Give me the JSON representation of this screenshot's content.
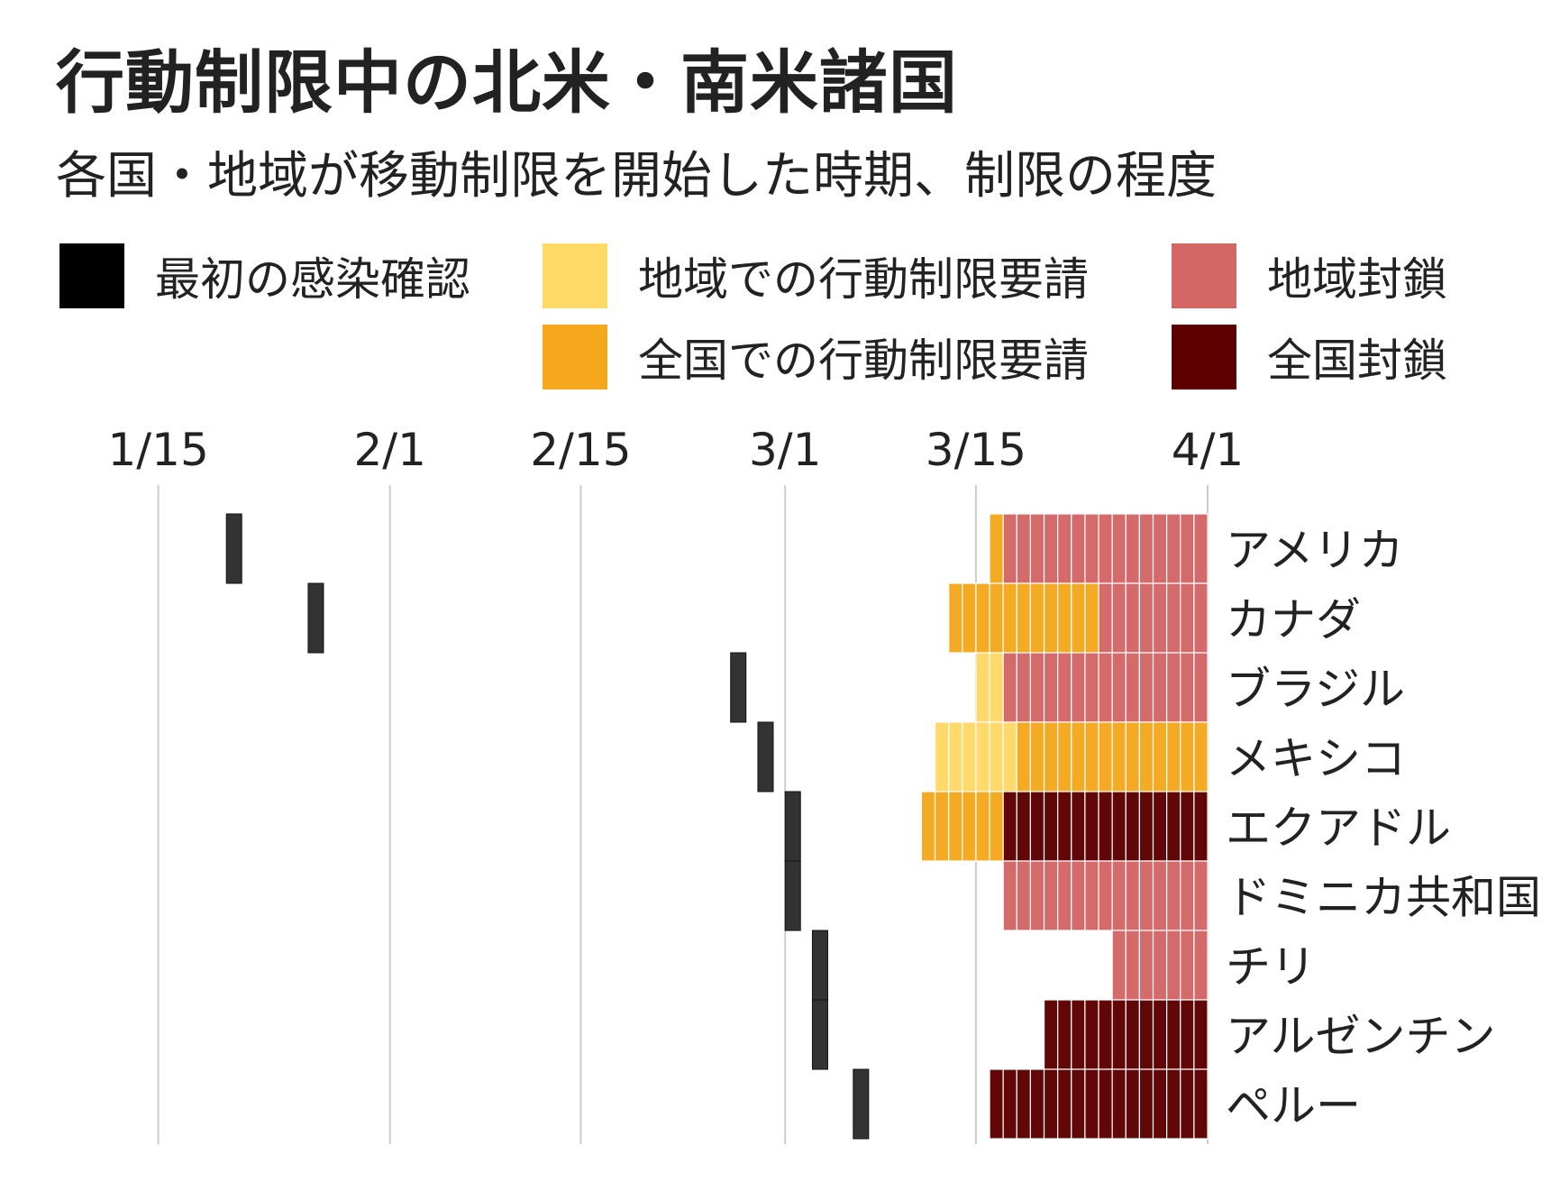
{
  "title": "行動制限中の北米・南米諸国",
  "subtitle": "各国・地域が移動制限を開始した時期、制限の程度",
  "legend": [
    {
      "key": "first_case",
      "label": "最初の感染確認",
      "color": "#000000"
    },
    {
      "key": "regional_request",
      "label": "地域での行動制限要請",
      "color": "#ffd966"
    },
    {
      "key": "regional_lockdown",
      "label": "地域封鎖",
      "color": "#d46666"
    },
    {
      "key": "national_request",
      "label": "全国での行動制限要請",
      "color": "#f5a81c"
    },
    {
      "key": "national_lockdown",
      "label": "全国封鎖",
      "color": "#5c0000"
    }
  ],
  "chart_data": {
    "type": "timeline",
    "x_ticks": [
      "1/15",
      "2/1",
      "2/15",
      "3/1",
      "3/15",
      "4/1"
    ],
    "x_range": [
      "2020-01-10",
      "2020-04-01"
    ],
    "first_case_color": "#333333",
    "countries": [
      {
        "name": "アメリカ",
        "first_case": "2020-01-20",
        "periods": [
          {
            "start": "2020-03-16",
            "status": "national_request"
          },
          {
            "start": "2020-03-17",
            "status": "regional_lockdown"
          }
        ]
      },
      {
        "name": "カナダ",
        "first_case": "2020-01-26",
        "periods": [
          {
            "start": "2020-03-13",
            "status": "national_request"
          },
          {
            "start": "2020-03-24",
            "status": "regional_lockdown"
          }
        ]
      },
      {
        "name": "ブラジル",
        "first_case": "2020-02-26",
        "periods": [
          {
            "start": "2020-03-15",
            "status": "regional_request"
          },
          {
            "start": "2020-03-17",
            "status": "regional_lockdown"
          }
        ]
      },
      {
        "name": "メキシコ",
        "first_case": "2020-02-28",
        "periods": [
          {
            "start": "2020-03-12",
            "status": "regional_request"
          },
          {
            "start": "2020-03-18",
            "status": "national_request"
          }
        ]
      },
      {
        "name": "エクアドル",
        "first_case": "2020-03-01",
        "periods": [
          {
            "start": "2020-03-11",
            "status": "national_request"
          },
          {
            "start": "2020-03-17",
            "status": "national_lockdown"
          }
        ]
      },
      {
        "name": "ドミニカ共和国",
        "first_case": "2020-03-01",
        "periods": [
          {
            "start": "2020-03-17",
            "status": "regional_lockdown"
          }
        ]
      },
      {
        "name": "チリ",
        "first_case": "2020-03-03",
        "periods": [
          {
            "start": "2020-03-25",
            "status": "regional_lockdown"
          }
        ]
      },
      {
        "name": "アルゼンチン",
        "first_case": "2020-03-03",
        "periods": [
          {
            "start": "2020-03-20",
            "status": "national_lockdown"
          }
        ]
      },
      {
        "name": "ペルー",
        "first_case": "2020-03-06",
        "periods": [
          {
            "start": "2020-03-16",
            "status": "national_lockdown"
          }
        ]
      }
    ]
  }
}
